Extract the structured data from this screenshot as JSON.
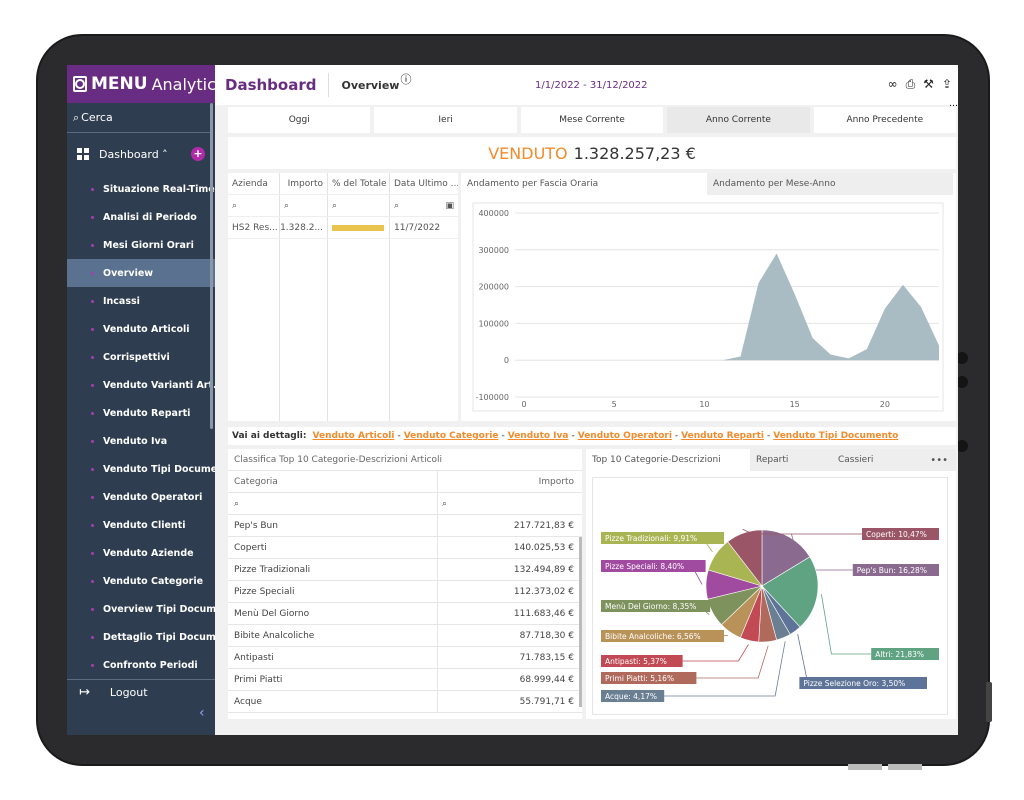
{
  "brand": {
    "part1": "MENU",
    "part2": "Analytics",
    "accent": "#682c83"
  },
  "sidebar": {
    "search_label": "Cerca",
    "dashboard_label": "Dashboard ˄",
    "items": [
      {
        "label": "Situazione Real-Time"
      },
      {
        "label": "Analisi di Periodo"
      },
      {
        "label": "Mesi Giorni Orari"
      },
      {
        "label": "Overview"
      },
      {
        "label": "Incassi"
      },
      {
        "label": "Venduto Articoli"
      },
      {
        "label": "Corrispettivi"
      },
      {
        "label": "Venduto Varianti Art..."
      },
      {
        "label": "Venduto Reparti"
      },
      {
        "label": "Venduto Iva"
      },
      {
        "label": "Venduto Tipi Documen..."
      },
      {
        "label": "Venduto Operatori"
      },
      {
        "label": "Venduto Clienti"
      },
      {
        "label": "Venduto Aziende"
      },
      {
        "label": "Venduto Categorie"
      },
      {
        "label": "Overview Tipi Docume..."
      },
      {
        "label": "Dettaglio Tipi Docum..."
      },
      {
        "label": "Confronto Periodi"
      }
    ],
    "active_index": 3,
    "logout_label": "Logout"
  },
  "header": {
    "title": "Dashboard",
    "tab": "Overview",
    "date_range": "1/1/2022 - 31/12/2022"
  },
  "periods": [
    {
      "label": "Oggi"
    },
    {
      "label": "Ieri"
    },
    {
      "label": "Mese Corrente"
    },
    {
      "label": "Anno Corrente",
      "active": true
    },
    {
      "label": "Anno Precedente"
    }
  ],
  "kpi": {
    "label": "VENDUTO",
    "value": "1.328.257,23 €"
  },
  "mini_table": {
    "headers": [
      "Azienda",
      "Importo",
      "% del Totale",
      "Data Ultimo ..."
    ],
    "row": {
      "azienda": "HS2 Res...",
      "importo": "1.328.2...",
      "pct": 1.0,
      "data": "11/7/2022"
    }
  },
  "chart_tabs": [
    "Andamento per Fascia Oraria",
    "Andamento per Mese-Anno"
  ],
  "chart_data": {
    "type": "area",
    "title": "",
    "x": [
      0,
      1,
      2,
      3,
      4,
      5,
      6,
      7,
      8,
      9,
      10,
      11,
      12,
      13,
      14,
      15,
      16,
      17,
      18,
      19,
      20,
      21,
      22,
      23
    ],
    "values": [
      0,
      0,
      0,
      0,
      0,
      0,
      0,
      0,
      0,
      0,
      0,
      0,
      10000,
      210000,
      290000,
      180000,
      60000,
      15000,
      5000,
      30000,
      140000,
      205000,
      145000,
      40000
    ],
    "xticks": [
      0,
      5,
      10,
      15,
      20
    ],
    "yticks": [
      -100000,
      0,
      100000,
      200000,
      300000,
      400000
    ],
    "ylim": [
      -100000,
      400000
    ],
    "xlim": [
      -0.5,
      23
    ],
    "color": "#a9bcc3"
  },
  "links": {
    "lead": "Vai ai dettagli:",
    "items": [
      "Venduto Articoli",
      "Venduto Categorie",
      "Venduto Iva",
      "Venduto Operatori",
      "Venduto Reparti",
      "Venduto Tipi Documento"
    ]
  },
  "categories_table": {
    "title": "Classifica Top 10 Categorie-Descrizioni Articoli",
    "col_cat": "Categoria",
    "col_imp": "Importo",
    "rows": [
      {
        "cat": "Pep's Bun",
        "imp": "217.721,83 €"
      },
      {
        "cat": "Coperti",
        "imp": "140.025,53 €"
      },
      {
        "cat": "Pizze Tradizionali",
        "imp": "132.494,89 €"
      },
      {
        "cat": "Pizze Speciali",
        "imp": "112.373,02 €"
      },
      {
        "cat": "Menù Del Giorno",
        "imp": "111.683,46 €"
      },
      {
        "cat": "Bibite Analcoliche",
        "imp": "87.718,30 €"
      },
      {
        "cat": "Antipasti",
        "imp": "71.783,15 €"
      },
      {
        "cat": "Primi Piatti",
        "imp": "68.999,44 €"
      },
      {
        "cat": "Acque",
        "imp": "55.791,71 €"
      }
    ]
  },
  "pie_tabs": [
    "Top 10 Categorie-Descrizioni",
    "Reparti",
    "Cassieri"
  ],
  "pie_data": {
    "type": "pie",
    "slices": [
      {
        "name": "Pep's Bun: 16,28%",
        "value": 16.28,
        "color": "#8a6a8e"
      },
      {
        "name": "Altri: 21,83%",
        "value": 21.83,
        "color": "#5fa383"
      },
      {
        "name": "Pizze Selezione Oro: 3,50%",
        "value": 3.5,
        "color": "#5d7498"
      },
      {
        "name": "Acque: 4,17%",
        "value": 4.17,
        "color": "#6b7f93"
      },
      {
        "name": "Primi Piatti: 5,16%",
        "value": 5.16,
        "color": "#b06a5c"
      },
      {
        "name": "Antipasti: 5,37%",
        "value": 5.37,
        "color": "#c24a55"
      },
      {
        "name": "Bibite Analcoliche: 6,56%",
        "value": 6.56,
        "color": "#b9925a"
      },
      {
        "name": "Menù Del Giorno: 8,35%",
        "value": 8.35,
        "color": "#7e925e"
      },
      {
        "name": "Pizze Speciali: 8,40%",
        "value": 8.4,
        "color": "#a04aa0"
      },
      {
        "name": "Pizze Tradizionali: 9,91%",
        "value": 9.91,
        "color": "#a9b452"
      },
      {
        "name": "Coperti: 10,47%",
        "value": 10.47,
        "color": "#9a5566"
      }
    ]
  }
}
